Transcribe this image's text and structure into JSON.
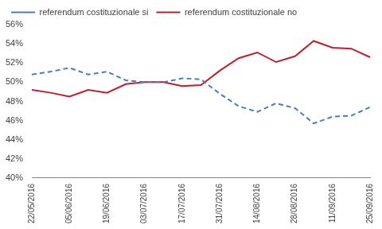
{
  "chart_data": {
    "type": "line",
    "categories": [
      "22/05/2016",
      null,
      "05/06/2016",
      null,
      "19/06/2016",
      null,
      "03/07/2016",
      null,
      "17/07/2016",
      null,
      "31/07/2016",
      null,
      "14/08/2016",
      null,
      "28/08/2016",
      null,
      "11/09/2016",
      null,
      "25/09/2016"
    ],
    "series": [
      {
        "name": "referendum costituzionale si",
        "color": "#4a7ebb",
        "line_style": "dashed",
        "marker": "none",
        "values": [
          50.8,
          51.1,
          51.5,
          50.8,
          51.1,
          50.2,
          50.0,
          50.0,
          50.4,
          50.3,
          48.8,
          47.5,
          46.9,
          47.8,
          47.3,
          45.7,
          46.4,
          46.5,
          47.4
        ]
      },
      {
        "name": "referendum costituzionale no",
        "color": "#be1e2d",
        "line_style": "solid",
        "marker": "none",
        "values": [
          49.2,
          48.9,
          48.5,
          49.2,
          48.9,
          49.8,
          50.0,
          50.0,
          49.6,
          49.7,
          51.2,
          52.5,
          53.1,
          52.1,
          52.7,
          54.3,
          53.6,
          53.5,
          52.6
        ]
      }
    ],
    "ylim": [
      40,
      56
    ],
    "yticks": [
      {
        "value": 40,
        "label": "40%"
      },
      {
        "value": 42,
        "label": "42%"
      },
      {
        "value": 44,
        "label": "44%"
      },
      {
        "value": 46,
        "label": "46%"
      },
      {
        "value": 48,
        "label": "48%"
      },
      {
        "value": 50,
        "label": "50%"
      },
      {
        "value": 52,
        "label": "52%"
      },
      {
        "value": 54,
        "label": "54%"
      },
      {
        "value": 56,
        "label": "56%"
      }
    ],
    "grid": false,
    "legend": "top"
  }
}
